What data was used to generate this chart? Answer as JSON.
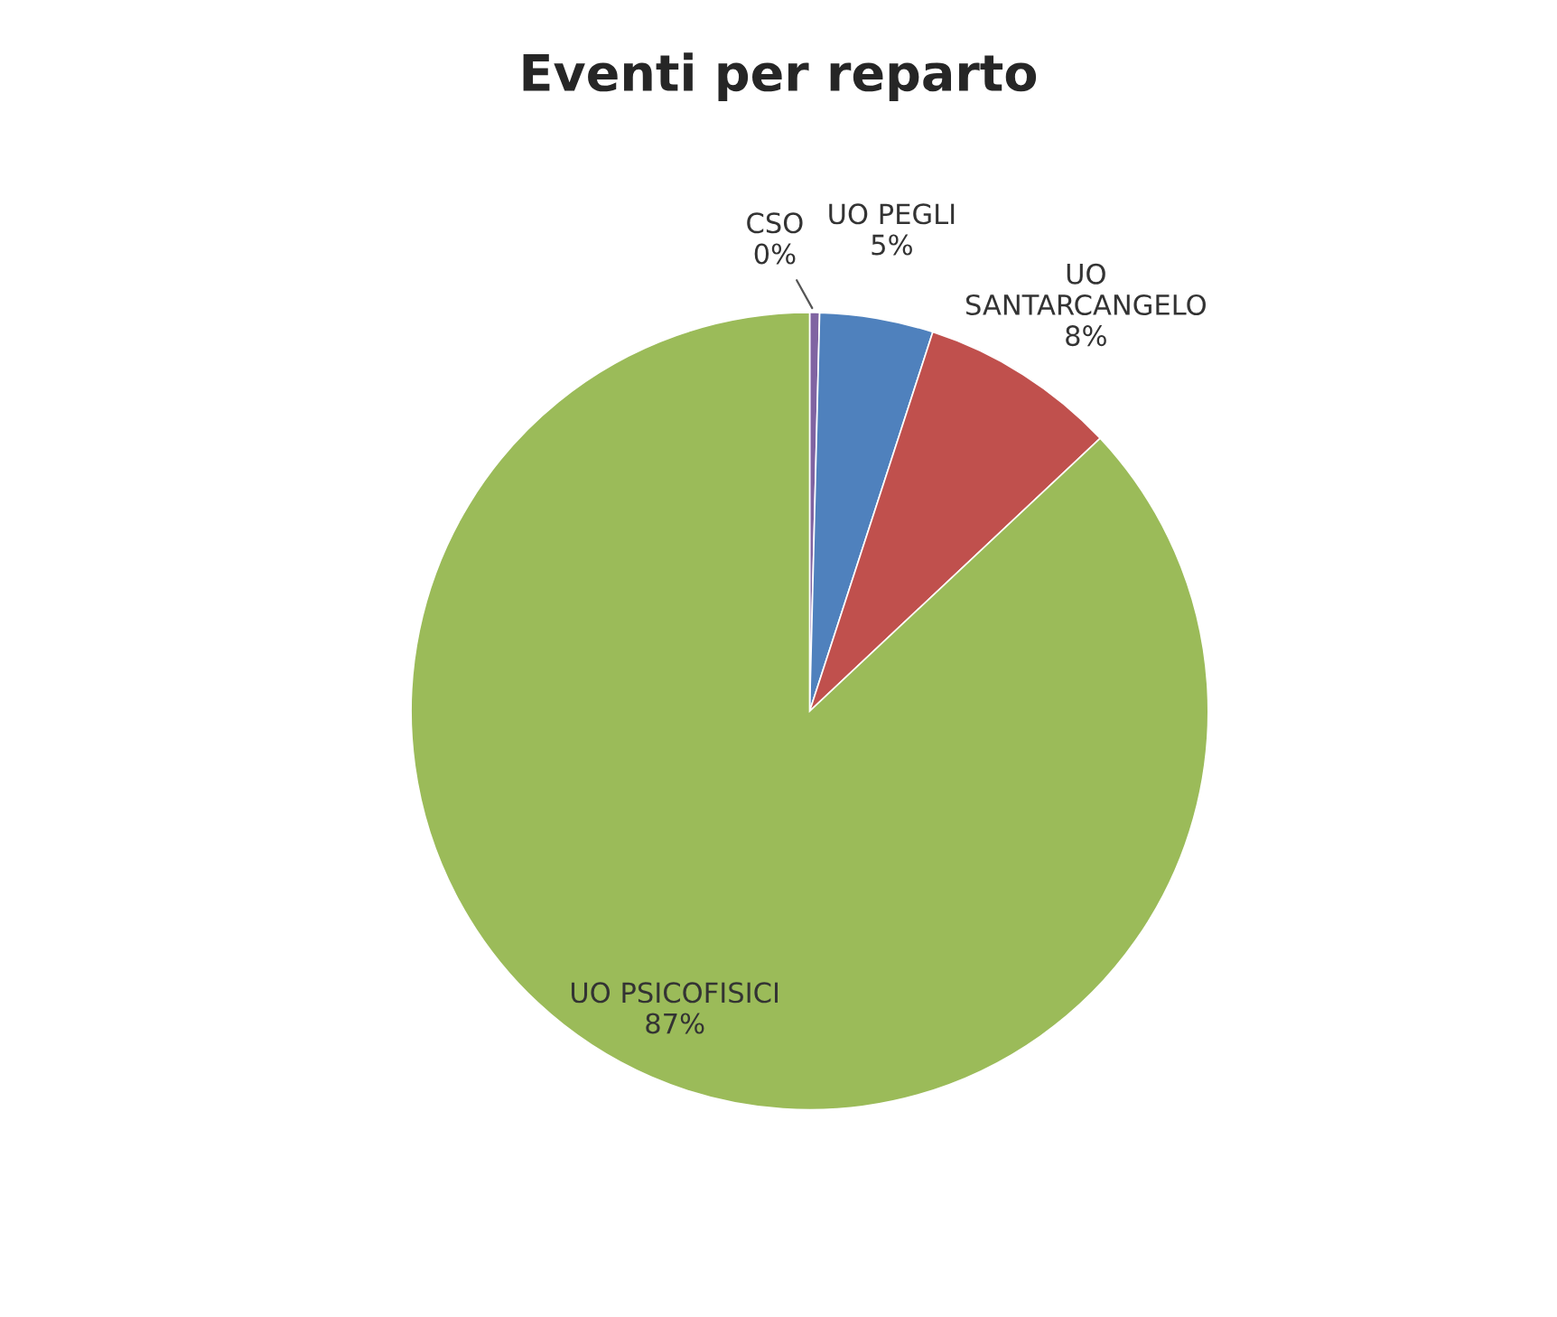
{
  "chart_data": {
    "type": "pie",
    "title": "Eventi per reparto",
    "categories": [
      "CSO",
      "UO PEGLI",
      "UO SANTARCANGELO",
      "UO PSICOFISICI"
    ],
    "values": [
      0.4,
      4.6,
      8,
      87
    ],
    "value_labels": [
      "0%",
      "5%",
      "8%",
      "87%"
    ],
    "colors": [
      "#8064a2",
      "#4f81bd",
      "#c0504d",
      "#9bbb59"
    ]
  }
}
